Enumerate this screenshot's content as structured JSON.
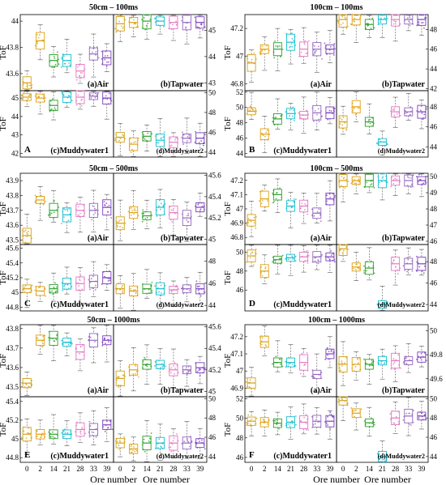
{
  "figure": {
    "x_label": "Ore number",
    "y_label": "ToF",
    "x_ticks": [
      "0",
      "2",
      "14",
      "21",
      "28",
      "33",
      "39"
    ],
    "ore_colors": [
      "#d4a017",
      "#e0a010",
      "#2ca02c",
      "#17becf",
      "#e377c2",
      "#9467bd",
      "#7b3fbf"
    ]
  },
  "chart_data": [
    {
      "type": "box",
      "column": "left",
      "block": "A",
      "row_title": "50cm – 100ms",
      "panels": [
        {
          "label": "(a)Air",
          "y_ticks": [
            "43.6",
            "43.8",
            "44"
          ],
          "y_range": [
            43.47,
            44.05
          ],
          "medians": [
            43.53,
            43.85,
            43.7,
            43.7,
            43.62,
            43.75,
            43.72
          ]
        },
        {
          "label": "(b)Tapwater",
          "y_ticks": [
            "43",
            "44",
            "45"
          ],
          "y_range": [
            42.7,
            45.6
          ],
          "medians": [
            45.25,
            45.3,
            45.35,
            45.35,
            45.3,
            45.3,
            45.3
          ]
        },
        {
          "label": "(c)Muddywater1",
          "y_ticks": [
            "42",
            "43",
            "44",
            "45"
          ],
          "y_range": [
            41.8,
            45.4
          ],
          "medians": [
            45.05,
            45.0,
            44.6,
            45.05,
            45.05,
            45.1,
            45.0
          ]
        },
        {
          "label": "(d)Muddywater2",
          "y_ticks": [
            "44",
            "46",
            "48",
            "50"
          ],
          "y_range": [
            43.5,
            50.2
          ],
          "medians": [
            45.5,
            44.8,
            45.6,
            45.2,
            45.0,
            45.4,
            45.4
          ]
        }
      ]
    },
    {
      "type": "box",
      "column": "right",
      "block": "B",
      "row_title": "100cm – 100ms",
      "panels": [
        {
          "label": "(a)Air",
          "y_ticks": [
            "46.8",
            "47",
            "47.2"
          ],
          "y_range": [
            46.75,
            47.3
          ],
          "medians": [
            46.95,
            47.05,
            47.05,
            47.1,
            47.05,
            47.05,
            47.05
          ]
        },
        {
          "label": "(b)Tapwater",
          "y_ticks": [
            "42",
            "44",
            "46",
            "48"
          ],
          "y_range": [
            41.8,
            49.5
          ],
          "medians": [
            49.0,
            49.0,
            48.5,
            49.0,
            49.0,
            49.0,
            49.0
          ]
        },
        {
          "label": "(c)Muddywater1",
          "y_ticks": [
            "44",
            "46",
            "48",
            "50",
            "52"
          ],
          "y_range": [
            43.5,
            52.2
          ],
          "medians": [
            49.5,
            46.5,
            48.5,
            49.2,
            49.0,
            49.3,
            49.3
          ]
        },
        {
          "label": "(d)Muddywater2",
          "y_ticks": [
            "44",
            "46",
            "48"
          ],
          "y_range": [
            43.0,
            49.6
          ],
          "medians": [
            46.5,
            48.0,
            46.5,
            44.5,
            47.5,
            47.5,
            47.5
          ]
        }
      ]
    },
    {
      "type": "box",
      "column": "left",
      "block": "C",
      "row_title": "50cm – 500ms",
      "panels": [
        {
          "label": "(a)Air",
          "y_ticks": [
            "43.5",
            "43.6",
            "43.7",
            "43.8",
            "43.9"
          ],
          "y_range": [
            43.47,
            43.95
          ],
          "medians": [
            43.53,
            43.77,
            43.7,
            43.67,
            43.7,
            43.7,
            43.72
          ]
        },
        {
          "label": "(b)Tapwater",
          "y_ticks": [
            "45",
            "45.2",
            "45.4",
            "45.6"
          ],
          "y_range": [
            44.95,
            45.62
          ],
          "medians": [
            45.15,
            45.25,
            45.22,
            45.3,
            45.25,
            45.2,
            45.3
          ]
        },
        {
          "label": "(c)Muddywater1",
          "y_ticks": [
            "44.8",
            "45",
            "45.2",
            "45.4",
            "45.6"
          ],
          "y_range": [
            44.75,
            45.65
          ],
          "medians": [
            45.05,
            45.02,
            45.05,
            45.12,
            45.12,
            45.15,
            45.2
          ]
        },
        {
          "label": "(d)Muddywater2",
          "y_ticks": [
            "44",
            "46",
            "48"
          ],
          "y_range": [
            43.5,
            49.5
          ],
          "medians": [
            45.5,
            45.3,
            45.5,
            45.5,
            45.4,
            45.5,
            45.5
          ]
        }
      ]
    },
    {
      "type": "box",
      "column": "right",
      "block": "D",
      "row_title": "100cm – 500ms",
      "panels": [
        {
          "label": "(a)Air",
          "y_ticks": [
            "46.8",
            "46.9",
            "47",
            "47.1",
            "47.2"
          ],
          "y_range": [
            46.75,
            47.25
          ],
          "medians": [
            46.92,
            47.07,
            47.1,
            47.02,
            47.02,
            46.97,
            47.07
          ]
        },
        {
          "label": "(b)Tapwater",
          "y_ticks": [
            "46",
            "47",
            "48",
            "49",
            "50"
          ],
          "y_range": [
            45.8,
            50.2
          ],
          "medians": [
            49.75,
            49.75,
            49.75,
            49.75,
            49.75,
            49.75,
            49.75
          ]
        },
        {
          "label": "(c)Muddywater1",
          "y_ticks": [
            "46",
            "48",
            "50"
          ],
          "y_range": [
            43.8,
            50.8
          ],
          "medians": [
            49.6,
            48.0,
            49.2,
            49.4,
            49.5,
            49.5,
            49.5
          ]
        },
        {
          "label": "(d)Muddywater2",
          "y_ticks": [
            "44",
            "46",
            "48"
          ],
          "y_range": [
            43.4,
            49.6
          ],
          "medians": [
            49.2,
            47.5,
            47.4,
            44.0,
            47.8,
            47.8,
            47.8
          ]
        }
      ]
    },
    {
      "type": "box",
      "column": "left",
      "block": "E",
      "row_title": "50cm – 1000ms",
      "panels": [
        {
          "label": "(a)Air",
          "y_ticks": [
            "43.5",
            "43.6",
            "43.7",
            "43.8"
          ],
          "y_range": [
            43.45,
            43.82
          ],
          "medians": [
            43.52,
            43.74,
            43.75,
            43.73,
            43.68,
            43.74,
            43.74
          ]
        },
        {
          "label": "(b)Tapwater",
          "y_ticks": [
            "45",
            "45.2",
            "45.4",
            "45.6"
          ],
          "y_range": [
            44.95,
            45.62
          ],
          "medians": [
            45.12,
            45.2,
            45.25,
            45.25,
            45.2,
            45.2,
            45.22
          ]
        },
        {
          "label": "(c)Muddywater1",
          "y_ticks": [
            "44.8",
            "45",
            "45.2",
            "45.4"
          ],
          "y_range": [
            44.75,
            45.45
          ],
          "medians": [
            45.05,
            45.05,
            45.05,
            45.05,
            45.1,
            45.1,
            45.15
          ]
        },
        {
          "label": "(d)Muddywater2",
          "y_ticks": [
            "44",
            "46",
            "48",
            "50"
          ],
          "y_range": [
            43.4,
            50.2
          ],
          "medians": [
            45.4,
            44.8,
            45.4,
            45.4,
            45.4,
            45.4,
            45.4
          ]
        }
      ]
    },
    {
      "type": "box",
      "column": "right",
      "block": "F",
      "row_title": "100cm – 1000ms",
      "panels": [
        {
          "label": "(a)Air",
          "y_ticks": [
            "46.9",
            "47",
            "47.1",
            "47.2"
          ],
          "y_range": [
            46.85,
            47.27
          ],
          "medians": [
            46.93,
            47.17,
            47.05,
            47.05,
            47.05,
            46.98,
            47.1
          ]
        },
        {
          "label": "(b)Tapwater",
          "y_ticks": [
            "49.6",
            "49.8",
            "50"
          ],
          "y_range": [
            49.45,
            50.05
          ],
          "medians": [
            49.72,
            49.72,
            49.72,
            49.75,
            49.75,
            49.75,
            49.78
          ]
        },
        {
          "label": "(c)Muddywater1",
          "y_ticks": [
            "46",
            "48",
            "50",
            "52"
          ],
          "y_range": [
            45.5,
            52.2
          ],
          "medians": [
            49.7,
            49.6,
            49.5,
            49.6,
            49.6,
            49.7,
            49.7
          ]
        },
        {
          "label": "(d)Muddywater2",
          "y_ticks": [
            "44",
            "46",
            "48",
            "50"
          ],
          "y_range": [
            43.4,
            50.2
          ],
          "medians": [
            49.8,
            48.5,
            47.5,
            44.0,
            48.0,
            48.2,
            48.2
          ]
        }
      ]
    }
  ]
}
